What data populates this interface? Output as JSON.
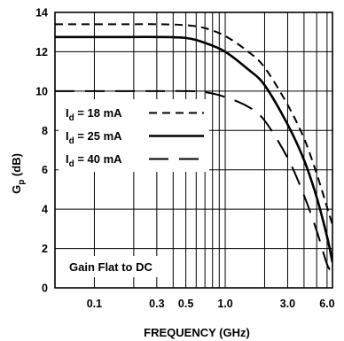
{
  "chart_data": {
    "type": "line",
    "xlabel": "FREQUENCY (GHz)",
    "ylabel_base": "G",
    "ylabel_sub": "p",
    "ylabel_unit": " (dB)",
    "x_scale": "log",
    "xlim": [
      0.05,
      6.6
    ],
    "ylim": [
      0,
      14
    ],
    "x_ticks": [
      0.1,
      0.3,
      0.5,
      1.0,
      3.0,
      6.0
    ],
    "x_tick_labels": [
      "0.1",
      "0.3",
      "0.5",
      "1.0",
      "3.0",
      "6.0"
    ],
    "x_grid": [
      0.1,
      0.2,
      0.3,
      0.4,
      0.5,
      0.6,
      0.7,
      0.8,
      0.9,
      1.0,
      2.0,
      3.0,
      4.0,
      5.0,
      6.0
    ],
    "y_ticks": [
      0,
      2,
      4,
      6,
      8,
      10,
      12,
      14
    ],
    "y_tick_labels": [
      "0",
      "2",
      "4",
      "6",
      "8",
      "10",
      "12",
      "14"
    ],
    "grid": true,
    "legend_position": "middle-left",
    "annotation": "Gain Flat to DC",
    "series": [
      {
        "name_prefix": "I",
        "name_sub": "d",
        "name_suffix": " = 18 mA",
        "style": "short-dash",
        "x": [
          0.05,
          0.1,
          0.2,
          0.3,
          0.5,
          0.7,
          1.0,
          1.5,
          2.0,
          3.0,
          4.0,
          5.0,
          6.0,
          6.6
        ],
        "y": [
          13.4,
          13.4,
          13.4,
          13.4,
          13.35,
          13.2,
          12.8,
          12.0,
          11.2,
          9.3,
          7.6,
          5.8,
          4.1,
          3.2
        ]
      },
      {
        "name_prefix": "I",
        "name_sub": "d",
        "name_suffix": " = 25 mA",
        "style": "solid",
        "x": [
          0.05,
          0.1,
          0.2,
          0.3,
          0.5,
          0.7,
          1.0,
          1.5,
          2.0,
          3.0,
          4.0,
          5.0,
          6.0,
          6.6
        ],
        "y": [
          12.75,
          12.75,
          12.75,
          12.75,
          12.7,
          12.45,
          12.0,
          11.1,
          10.3,
          8.3,
          6.5,
          4.6,
          2.6,
          1.3
        ]
      },
      {
        "name_prefix": "I",
        "name_sub": "d",
        "name_suffix": " = 40 mA",
        "style": "long-dash",
        "x": [
          0.05,
          0.1,
          0.2,
          0.3,
          0.5,
          0.7,
          1.0,
          1.5,
          2.0,
          3.0,
          4.0,
          5.0,
          6.0,
          6.6
        ],
        "y": [
          10.0,
          10.0,
          10.0,
          10.0,
          10.0,
          9.95,
          9.7,
          9.2,
          8.5,
          6.6,
          4.7,
          2.9,
          1.2,
          0.8
        ]
      }
    ]
  }
}
